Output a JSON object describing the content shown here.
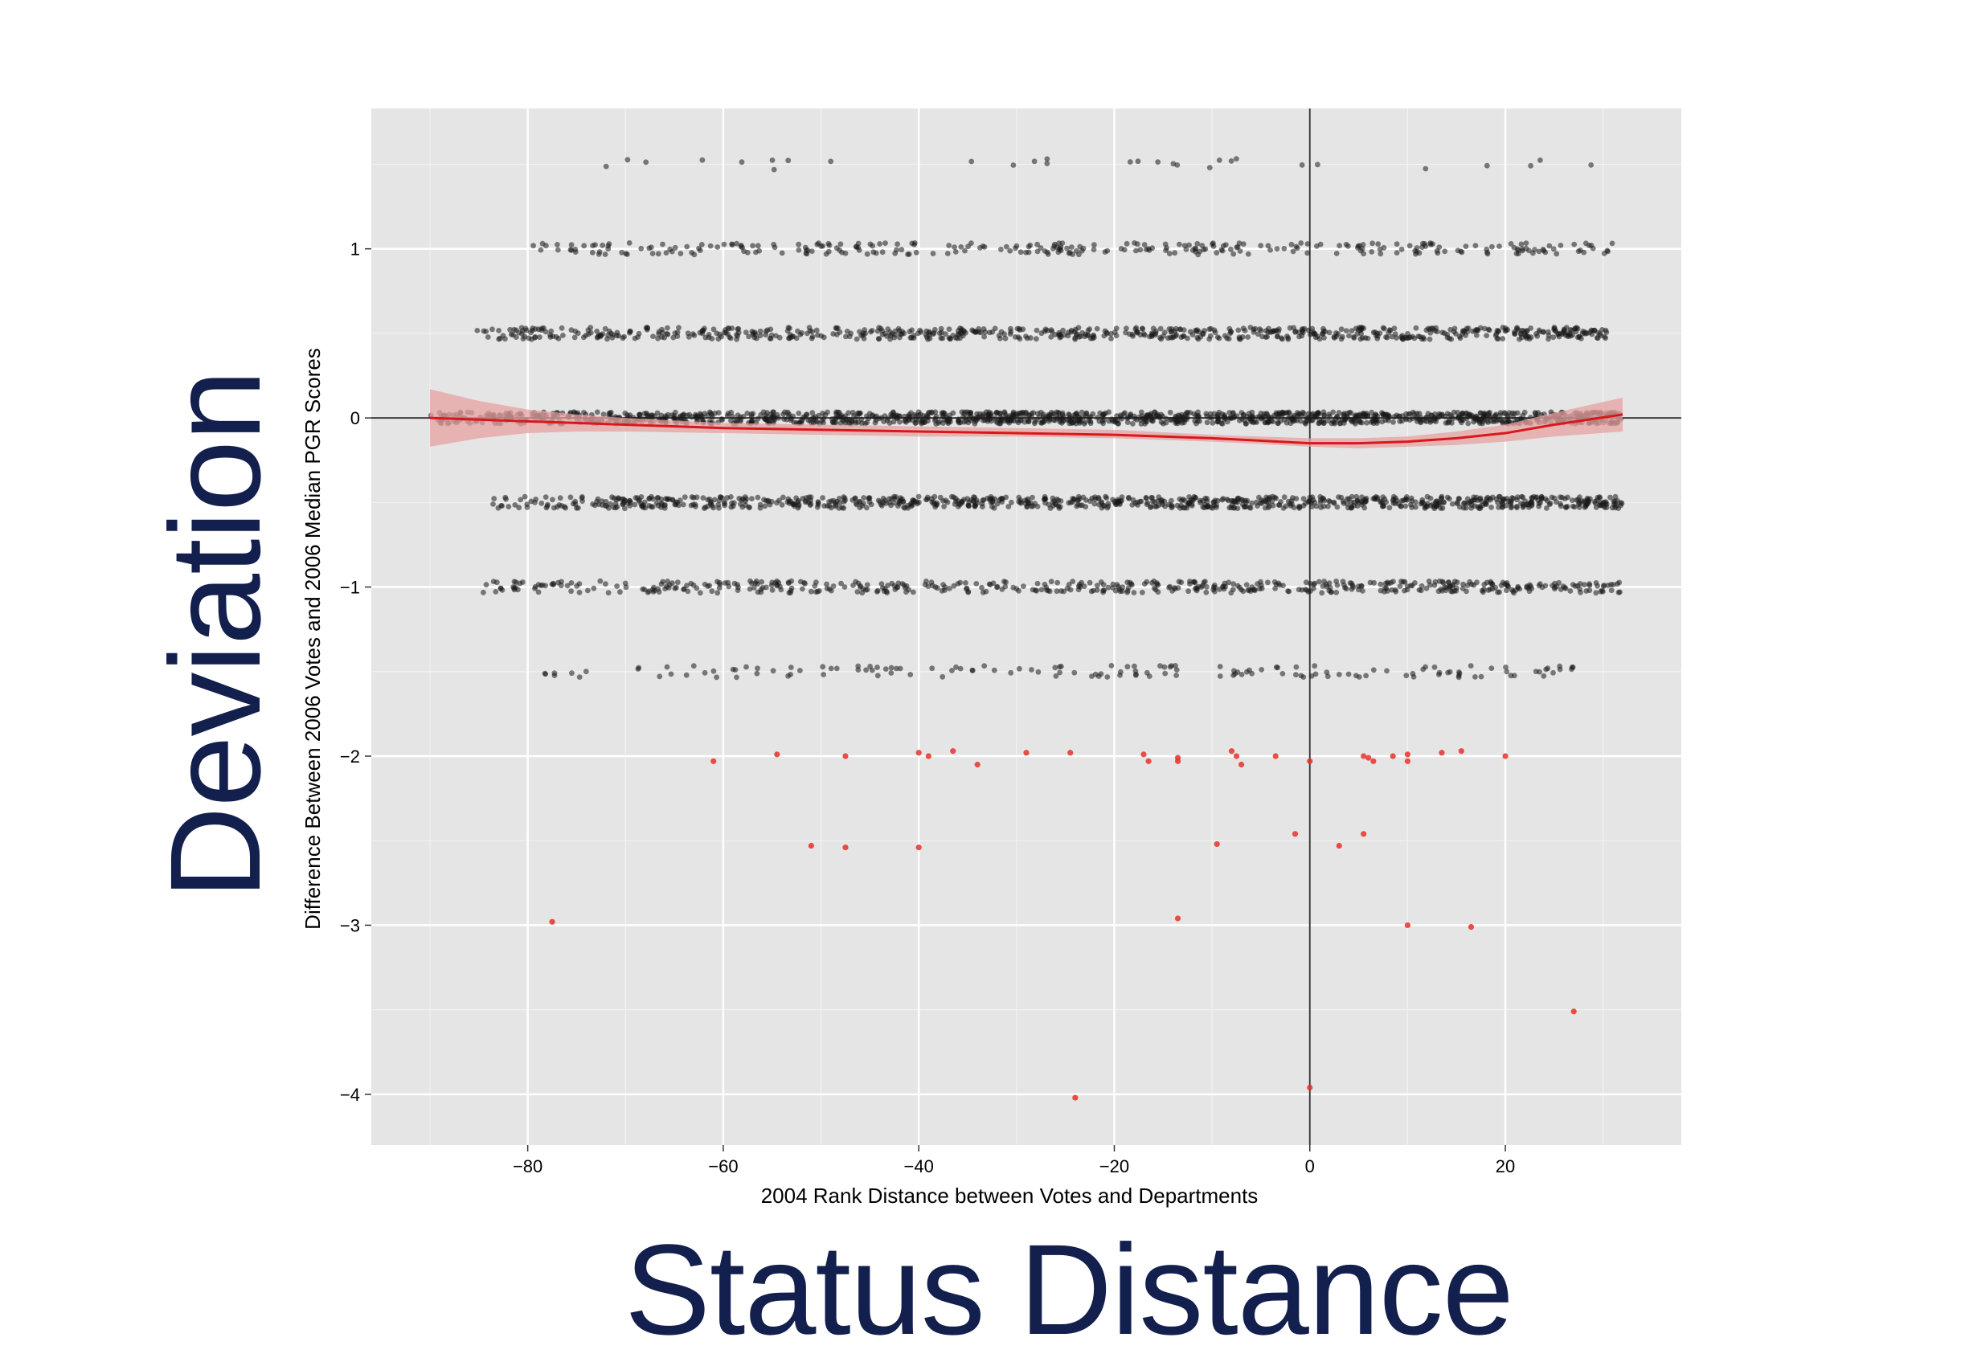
{
  "slide": {
    "big_x_label": "Status Distance",
    "big_y_label": "Deviation",
    "text_color": "#13204e"
  },
  "chart_data": {
    "type": "scatter",
    "title": "",
    "xlabel": "2004 Rank Distance between Votes and Departments",
    "ylabel": "Difference Between 2006 Votes and 2006 Median PGR Scores",
    "xlim": [
      -96,
      38
    ],
    "ylim": [
      -4.3,
      1.83
    ],
    "x_ticks": [
      -80,
      -60,
      -40,
      -20,
      0,
      20
    ],
    "x_tick_labels": [
      "−80",
      "−60",
      "−40",
      "−20",
      "0",
      "20"
    ],
    "y_ticks": [
      -4,
      -3,
      -2,
      -1,
      0,
      1
    ],
    "y_tick_labels": [
      "−4",
      "−3",
      "−2",
      "−1",
      "0",
      "1"
    ],
    "grid": true,
    "background": "#e5e5e5",
    "reference_lines": {
      "x": 0,
      "y": 0
    },
    "point_colors": {
      "normal": "#1a1a1a",
      "outlier": "#e8312a"
    },
    "series": [
      {
        "name": "",
        "kind": "jittered-points",
        "color": "#1a1a1a",
        "bands": [
          {
            "y": 1.5,
            "x_min": -76,
            "x_max": 30,
            "count": 30
          },
          {
            "y": 1.0,
            "x_min": -80,
            "x_max": 31,
            "count": 300
          },
          {
            "y": 0.5,
            "x_min": -86,
            "x_max": 31,
            "count": 700
          },
          {
            "y": 0.0,
            "x_min": -90,
            "x_max": 32,
            "count": 1300
          },
          {
            "y": -0.5,
            "x_min": -84,
            "x_max": 32,
            "count": 900
          },
          {
            "y": -1.0,
            "x_min": -85,
            "x_max": 32,
            "count": 520
          },
          {
            "y": -1.5,
            "x_min": -80,
            "x_max": 27,
            "count": 150
          }
        ]
      },
      {
        "name": "",
        "kind": "outliers",
        "color": "#e8312a",
        "points": [
          [
            -61,
            -2.03
          ],
          [
            -54.5,
            -1.99
          ],
          [
            -47.5,
            -2.0
          ],
          [
            -40,
            -1.98
          ],
          [
            -39,
            -2.0
          ],
          [
            -36.5,
            -1.97
          ],
          [
            -34,
            -2.05
          ],
          [
            -29,
            -1.98
          ],
          [
            -24.5,
            -1.98
          ],
          [
            -17,
            -1.99
          ],
          [
            -16.5,
            -2.03
          ],
          [
            -13.5,
            -2.01
          ],
          [
            -13.5,
            -2.03
          ],
          [
            -8,
            -1.97
          ],
          [
            -7.5,
            -2.0
          ],
          [
            -7,
            -2.05
          ],
          [
            -3.5,
            -2.0
          ],
          [
            0,
            -2.03
          ],
          [
            5.5,
            -2.0
          ],
          [
            6,
            -2.01
          ],
          [
            6.5,
            -2.03
          ],
          [
            8.5,
            -2.0
          ],
          [
            10,
            -2.03
          ],
          [
            10,
            -1.99
          ],
          [
            13.5,
            -1.98
          ],
          [
            15.5,
            -1.97
          ],
          [
            20,
            -2.0
          ],
          [
            -51,
            -2.53
          ],
          [
            -47.5,
            -2.54
          ],
          [
            -40,
            -2.54
          ],
          [
            -9.5,
            -2.52
          ],
          [
            -1.5,
            -2.46
          ],
          [
            3,
            -2.53
          ],
          [
            5.5,
            -2.46
          ],
          [
            -77.5,
            -2.98
          ],
          [
            -13.5,
            -2.96
          ],
          [
            10,
            -3.0
          ],
          [
            16.5,
            -3.01
          ],
          [
            27,
            -3.51
          ],
          [
            -24,
            -4.02
          ],
          [
            0,
            -3.96
          ]
        ]
      },
      {
        "name": "",
        "kind": "smooth",
        "color": "#d7191c",
        "band_color": "#e7a0a0",
        "points": [
          {
            "x": -90,
            "y": 0.0,
            "lo": -0.17,
            "hi": 0.17
          },
          {
            "x": -85,
            "y": -0.01,
            "lo": -0.12,
            "hi": 0.1
          },
          {
            "x": -80,
            "y": -0.02,
            "lo": -0.09,
            "hi": 0.05
          },
          {
            "x": -75,
            "y": -0.03,
            "lo": -0.08,
            "hi": 0.02
          },
          {
            "x": -70,
            "y": -0.04,
            "lo": -0.08,
            "hi": 0.0
          },
          {
            "x": -60,
            "y": -0.06,
            "lo": -0.09,
            "hi": -0.03
          },
          {
            "x": -50,
            "y": -0.07,
            "lo": -0.1,
            "hi": -0.04
          },
          {
            "x": -40,
            "y": -0.08,
            "lo": -0.11,
            "hi": -0.05
          },
          {
            "x": -30,
            "y": -0.09,
            "lo": -0.11,
            "hi": -0.06
          },
          {
            "x": -20,
            "y": -0.1,
            "lo": -0.12,
            "hi": -0.07
          },
          {
            "x": -10,
            "y": -0.12,
            "lo": -0.14,
            "hi": -0.1
          },
          {
            "x": 0,
            "y": -0.15,
            "lo": -0.17,
            "hi": -0.12
          },
          {
            "x": 5,
            "y": -0.15,
            "lo": -0.18,
            "hi": -0.12
          },
          {
            "x": 10,
            "y": -0.14,
            "lo": -0.17,
            "hi": -0.11
          },
          {
            "x": 15,
            "y": -0.12,
            "lo": -0.16,
            "hi": -0.08
          },
          {
            "x": 20,
            "y": -0.09,
            "lo": -0.14,
            "hi": -0.04
          },
          {
            "x": 25,
            "y": -0.04,
            "lo": -0.11,
            "hi": 0.03
          },
          {
            "x": 32,
            "y": 0.02,
            "lo": -0.08,
            "hi": 0.12
          }
        ]
      }
    ]
  }
}
